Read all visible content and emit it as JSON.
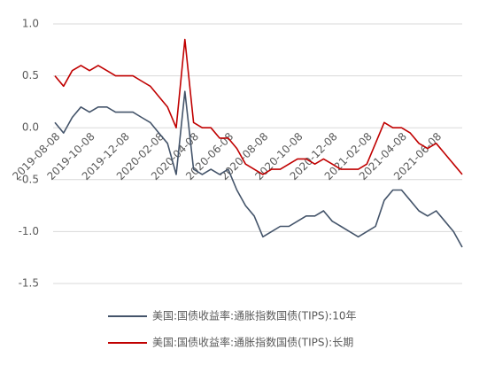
{
  "chart_data": {
    "type": "line",
    "categories": [
      "2019-08-08",
      null,
      null,
      null,
      "2019-10-08",
      null,
      null,
      null,
      "2019-12-08",
      null,
      null,
      null,
      "2020-02-08",
      null,
      null,
      null,
      "2020-04-08",
      null,
      null,
      null,
      "2020-06-08",
      null,
      null,
      null,
      "2020-08-08",
      null,
      null,
      null,
      "2020-10-08",
      null,
      null,
      null,
      "2020-12-08",
      null,
      null,
      null,
      "2021-02-08",
      null,
      null,
      null,
      "2021-04-08",
      null,
      null,
      null,
      "2021-06-08",
      null,
      null,
      null
    ],
    "series": [
      {
        "name": "美国:国债收益率:通胀指数国债(TIPS):10年",
        "color": "#44546a",
        "values": [
          0.05,
          -0.05,
          0.1,
          0.2,
          0.15,
          0.2,
          0.2,
          0.15,
          0.15,
          0.15,
          0.1,
          0.05,
          -0.05,
          -0.15,
          -0.45,
          0.35,
          -0.4,
          -0.45,
          -0.4,
          -0.45,
          -0.4,
          -0.6,
          -0.75,
          -0.85,
          -1.05,
          -1.0,
          -0.95,
          -0.95,
          -0.9,
          -0.85,
          -0.85,
          -0.8,
          -0.9,
          -0.95,
          -1.0,
          -1.05,
          -1.0,
          -0.95,
          -0.7,
          -0.6,
          -0.6,
          -0.7,
          -0.8,
          -0.85,
          -0.8,
          -0.9,
          -1.0,
          -1.15
        ]
      },
      {
        "name": "美国:国债收益率:通胀指数国债(TIPS):长期",
        "color": "#c00000",
        "values": [
          0.5,
          0.4,
          0.55,
          0.6,
          0.55,
          0.6,
          0.55,
          0.5,
          0.5,
          0.5,
          0.45,
          0.4,
          0.3,
          0.2,
          0.0,
          0.85,
          0.05,
          0.0,
          0.0,
          -0.1,
          -0.1,
          -0.2,
          -0.35,
          -0.4,
          -0.45,
          -0.4,
          -0.4,
          -0.35,
          -0.3,
          -0.3,
          -0.35,
          -0.3,
          -0.35,
          -0.4,
          -0.4,
          -0.4,
          -0.35,
          -0.15,
          0.05,
          0.0,
          0.0,
          -0.05,
          -0.15,
          -0.2,
          -0.15,
          -0.25,
          -0.35,
          -0.45
        ]
      }
    ],
    "ylim": [
      -1.5,
      1.0
    ],
    "yticks": [
      {
        "value": 1,
        "label": "1.0"
      },
      0.5,
      {
        "value": 0,
        "label": "0.0"
      },
      -0.5,
      {
        "value": -1,
        "label": "-1.0"
      },
      -1.5
    ],
    "grid": true
  }
}
